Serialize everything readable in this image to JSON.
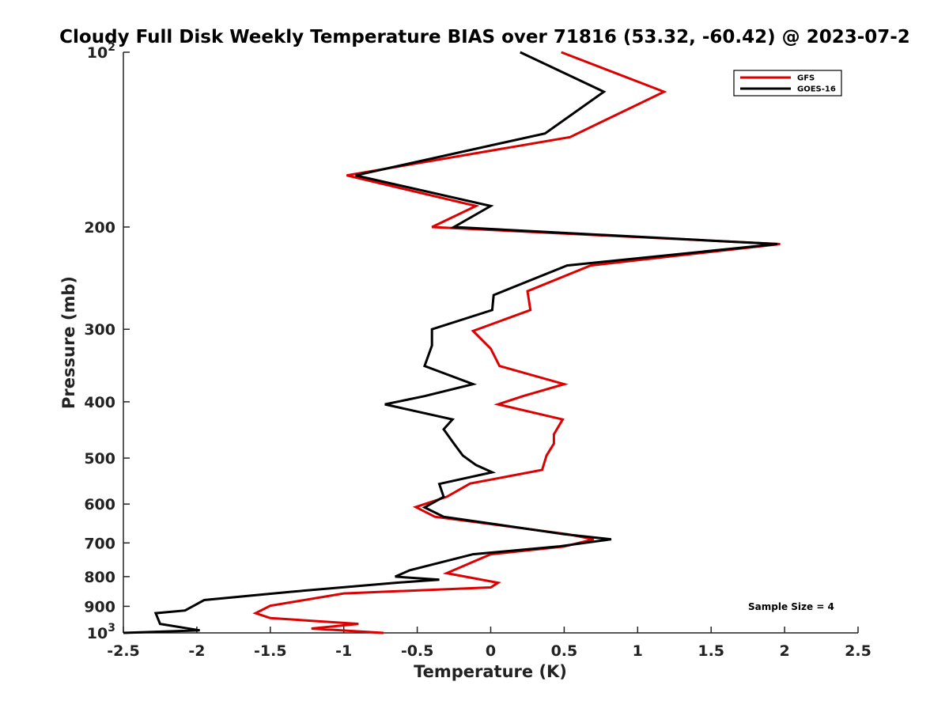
{
  "chart_data": {
    "type": "line",
    "title": "Cloudy Full Disk Weekly Temperature BIAS over 71816 (53.32, -60.42) @ 2023-07-2",
    "xlabel": "Temperature (K)",
    "ylabel": "Pressure (mb)",
    "xlim": [
      -2.5,
      2.5
    ],
    "ylim": [
      100,
      1000
    ],
    "yscale": "log",
    "y_reversed": true,
    "grid": false,
    "legend_position": "top-right",
    "x_ticks": [
      "-2.5",
      "-2",
      "-1.5",
      "-1",
      "-0.5",
      "0",
      "0.5",
      "1",
      "1.5",
      "2",
      "2.5"
    ],
    "y_ticks": [
      {
        "value": 100,
        "label": "10",
        "sup": "2"
      },
      {
        "value": 200,
        "label": "200"
      },
      {
        "value": 300,
        "label": "300"
      },
      {
        "value": 400,
        "label": "400"
      },
      {
        "value": 500,
        "label": "500"
      },
      {
        "value": 600,
        "label": "600"
      },
      {
        "value": 700,
        "label": "700"
      },
      {
        "value": 800,
        "label": "800"
      },
      {
        "value": 900,
        "label": "900"
      },
      {
        "value": 1000,
        "label": "10",
        "sup": "3"
      }
    ],
    "annotation": "Sample Size = 4",
    "series": [
      {
        "name": "GFS",
        "color": "#dd0000",
        "points": [
          [
            0.48,
            100
          ],
          [
            1.18,
            117
          ],
          [
            0.54,
            140
          ],
          [
            -0.98,
            163
          ],
          [
            -0.1,
            184
          ],
          [
            -0.4,
            200
          ],
          [
            1.97,
            214
          ],
          [
            0.68,
            233
          ],
          [
            0.25,
            258
          ],
          [
            0.27,
            278
          ],
          [
            -0.12,
            302
          ],
          [
            0.0,
            324
          ],
          [
            0.06,
            347
          ],
          [
            0.5,
            373
          ],
          [
            0.22,
            391
          ],
          [
            0.05,
            404
          ],
          [
            0.49,
            429
          ],
          [
            0.43,
            455
          ],
          [
            0.43,
            472
          ],
          [
            0.38,
            495
          ],
          [
            0.35,
            524
          ],
          [
            -0.14,
            553
          ],
          [
            -0.3,
            583
          ],
          [
            -0.51,
            607
          ],
          [
            -0.38,
            631
          ],
          [
            0.52,
            676
          ],
          [
            0.7,
            690
          ],
          [
            0.5,
            710
          ],
          [
            0.0,
            732
          ],
          [
            -0.3,
            789
          ],
          [
            0.05,
            820
          ],
          [
            0.0,
            835
          ],
          [
            -1.0,
            855
          ],
          [
            -1.5,
            898
          ],
          [
            -1.6,
            925
          ],
          [
            -1.5,
            943
          ],
          [
            -0.9,
            965
          ],
          [
            -1.22,
            983
          ],
          [
            -0.73,
            1000
          ]
        ]
      },
      {
        "name": "GOES-16",
        "color": "#000000",
        "points": [
          [
            0.2,
            100
          ],
          [
            0.77,
            117
          ],
          [
            0.37,
            138
          ],
          [
            -0.92,
            163
          ],
          [
            0.0,
            184
          ],
          [
            -0.25,
            200
          ],
          [
            1.95,
            214
          ],
          [
            0.52,
            233
          ],
          [
            0.02,
            262
          ],
          [
            0.01,
            278
          ],
          [
            -0.4,
            300
          ],
          [
            -0.4,
            320
          ],
          [
            -0.45,
            347
          ],
          [
            -0.12,
            373
          ],
          [
            -0.45,
            391
          ],
          [
            -0.72,
            404
          ],
          [
            -0.26,
            429
          ],
          [
            -0.32,
            446
          ],
          [
            -0.25,
            472
          ],
          [
            -0.19,
            495
          ],
          [
            -0.1,
            514
          ],
          [
            0.01,
            529
          ],
          [
            -0.35,
            554
          ],
          [
            -0.32,
            583
          ],
          [
            -0.45,
            608
          ],
          [
            -0.32,
            631
          ],
          [
            0.5,
            676
          ],
          [
            0.82,
            690
          ],
          [
            0.46,
            710
          ],
          [
            -0.12,
            732
          ],
          [
            -0.55,
            780
          ],
          [
            -0.65,
            800
          ],
          [
            -0.35,
            810
          ],
          [
            -0.65,
            820
          ],
          [
            -1.37,
            850
          ],
          [
            -1.95,
            878
          ],
          [
            -2.08,
            915
          ],
          [
            -2.28,
            925
          ],
          [
            -2.25,
            965
          ],
          [
            -1.98,
            990
          ],
          [
            -2.5,
            1000
          ]
        ]
      }
    ]
  }
}
